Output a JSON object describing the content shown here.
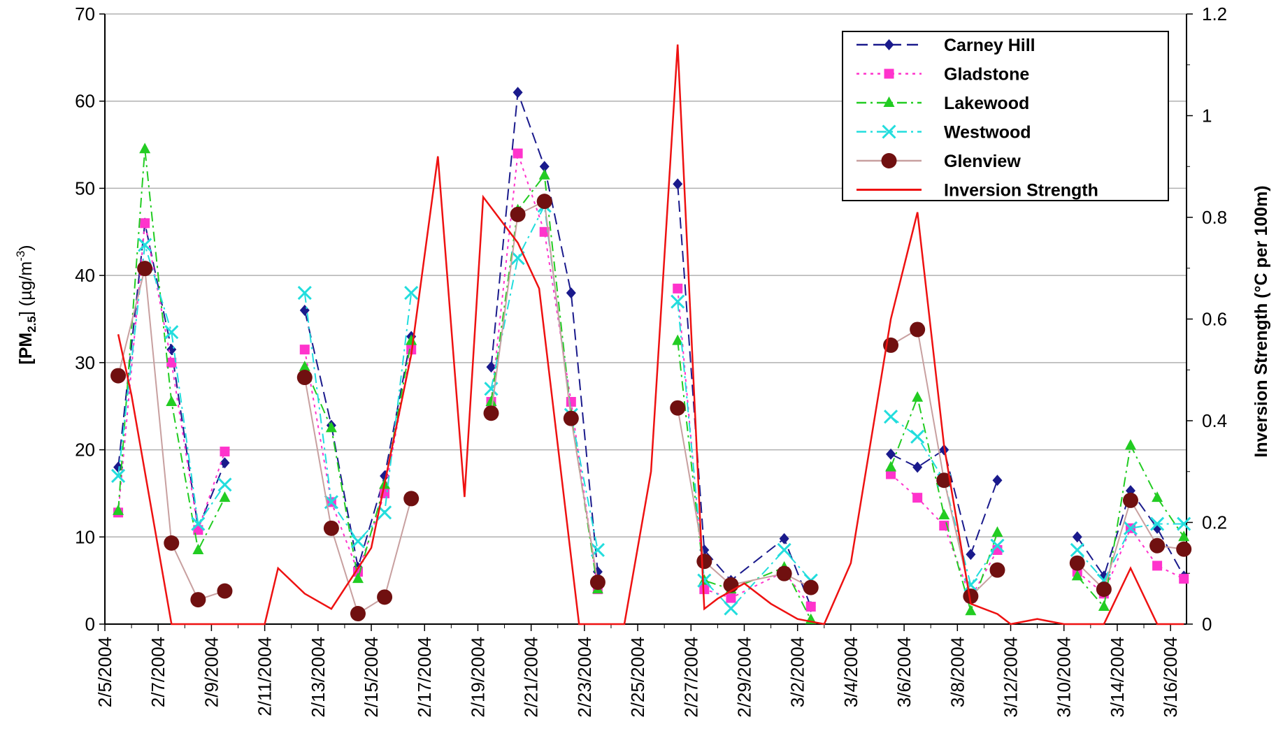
{
  "chart_data": {
    "type": "line",
    "ylabel": "[PM2.5] (µg/m3)",
    "ylabel_parts": {
      "pre": "[PM",
      "sub": "2.5",
      "mid": "] (µg/m",
      "sup": "-3",
      "post": ")"
    },
    "y2label": "Inversion Strength (°C per 100m)",
    "ylim": [
      0,
      70
    ],
    "y2lim": [
      0,
      1.2
    ],
    "yticks": [
      "0",
      "10",
      "20",
      "30",
      "40",
      "50",
      "60",
      "70"
    ],
    "y2ticks": [
      "0",
      "0.2",
      "0.4",
      "0.6",
      "0.8",
      "1",
      "1.2"
    ],
    "xlim": [
      0,
      40
    ],
    "x_tick_labels": [
      "2/5/2004",
      "2/7/2004",
      "2/9/2004",
      "2/11/2004",
      "2/13/2004",
      "2/15/2004",
      "2/17/2004",
      "2/19/2004",
      "2/21/2004",
      "2/23/2004",
      "2/25/2004",
      "2/27/2004",
      "2/29/2004",
      "3/2/2004",
      "3/4/2004",
      "3/6/2004",
      "3/8/2004",
      "3/12/2004",
      "3/10/2004",
      "3/14/2004",
      "3/16/2004"
    ],
    "grid": "horizontal",
    "legend_position": "top-right",
    "series": [
      {
        "name": "Carney Hill",
        "color": "#1a1a8c",
        "marker": "diamond",
        "dash": "dashed",
        "points": [
          [
            0.5,
            18
          ],
          [
            1.5,
            46
          ],
          [
            2.5,
            31.5
          ],
          [
            3.5,
            11
          ],
          [
            4.5,
            18.5
          ],
          [
            null,
            null
          ],
          [
            7.5,
            36
          ],
          [
            8.5,
            22.8
          ],
          [
            9.5,
            6.5
          ],
          [
            10.5,
            17
          ],
          [
            11.5,
            33
          ],
          [
            null,
            null
          ],
          [
            14.5,
            29.5
          ],
          [
            15.5,
            61
          ],
          [
            16.5,
            52.5
          ],
          [
            17.5,
            38
          ],
          [
            18.5,
            6
          ],
          [
            null,
            null
          ],
          [
            21.5,
            50.5
          ],
          [
            22.5,
            8.5
          ],
          [
            23.5,
            5
          ],
          [
            25.5,
            9.8
          ],
          [
            26.5,
            2
          ],
          [
            null,
            null
          ],
          [
            29.5,
            19.5
          ],
          [
            30.5,
            18
          ],
          [
            31.5,
            20
          ],
          [
            32.5,
            8
          ],
          [
            33.5,
            16.5
          ],
          [
            null,
            null
          ],
          [
            36.5,
            10
          ],
          [
            37.5,
            5.5
          ],
          [
            38.5,
            15.3
          ],
          [
            39.5,
            11
          ],
          [
            40.5,
            5.5
          ]
        ]
      },
      {
        "name": "Gladstone",
        "color": "#ff33cc",
        "marker": "square",
        "dash": "dotted",
        "points": [
          [
            0.5,
            12.8
          ],
          [
            1.5,
            46
          ],
          [
            2.5,
            30
          ],
          [
            3.5,
            10.8
          ],
          [
            4.5,
            19.8
          ],
          [
            null,
            null
          ],
          [
            7.5,
            31.5
          ],
          [
            8.5,
            14
          ],
          [
            9.5,
            6
          ],
          [
            10.5,
            15
          ],
          [
            11.5,
            31.5
          ],
          [
            null,
            null
          ],
          [
            14.5,
            25.5
          ],
          [
            15.5,
            54
          ],
          [
            16.5,
            45
          ],
          [
            17.5,
            25.5
          ],
          [
            18.5,
            4
          ],
          [
            null,
            null
          ],
          [
            21.5,
            38.5
          ],
          [
            22.5,
            4
          ],
          [
            23.5,
            3
          ],
          [
            25.5,
            6
          ],
          [
            26.5,
            2
          ],
          [
            null,
            null
          ],
          [
            29.5,
            17.2
          ],
          [
            30.5,
            14.5
          ],
          [
            31.5,
            11.3
          ],
          [
            32.5,
            3
          ],
          [
            33.5,
            8.5
          ],
          [
            null,
            null
          ],
          [
            36.5,
            6
          ],
          [
            37.5,
            3.5
          ],
          [
            38.5,
            11
          ],
          [
            39.5,
            6.7
          ],
          [
            40.5,
            5.2
          ]
        ]
      },
      {
        "name": "Lakewood",
        "color": "#22cc22",
        "marker": "triangle",
        "dash": "dashdot",
        "points": [
          [
            0.5,
            13
          ],
          [
            1.5,
            54.5
          ],
          [
            2.5,
            25.5
          ],
          [
            3.5,
            8.5
          ],
          [
            4.5,
            14.5
          ],
          [
            null,
            null
          ],
          [
            7.5,
            29.5
          ],
          [
            8.5,
            22.5
          ],
          [
            9.5,
            5.2
          ],
          [
            10.5,
            16
          ],
          [
            11.5,
            32.5
          ],
          [
            null,
            null
          ],
          [
            14.5,
            25.5
          ],
          [
            15.5,
            47.5
          ],
          [
            16.5,
            51.5
          ],
          [
            17.5,
            24
          ],
          [
            18.5,
            4
          ],
          [
            null,
            null
          ],
          [
            21.5,
            32.5
          ],
          [
            22.5,
            5
          ],
          [
            23.5,
            4
          ],
          [
            25.5,
            6.5
          ],
          [
            26.5,
            0.5
          ],
          [
            null,
            null
          ],
          [
            29.5,
            18
          ],
          [
            30.5,
            26
          ],
          [
            31.5,
            12.5
          ],
          [
            32.5,
            1.5
          ],
          [
            33.5,
            10.5
          ],
          [
            null,
            null
          ],
          [
            36.5,
            5.5
          ],
          [
            37.5,
            2
          ],
          [
            38.5,
            20.5
          ],
          [
            39.5,
            14.5
          ],
          [
            40.5,
            10
          ]
        ]
      },
      {
        "name": "Westwood",
        "color": "#22dddd",
        "marker": "x",
        "dash": "dashdot",
        "points": [
          [
            0.5,
            17
          ],
          [
            1.5,
            43.5
          ],
          [
            2.5,
            33.5
          ],
          [
            3.5,
            11.5
          ],
          [
            4.5,
            16
          ],
          [
            null,
            null
          ],
          [
            7.5,
            38
          ],
          [
            8.5,
            14
          ],
          [
            9.5,
            9.5
          ],
          [
            10.5,
            12.8
          ],
          [
            11.5,
            38
          ],
          [
            null,
            null
          ],
          [
            14.5,
            27
          ],
          [
            15.5,
            42
          ],
          [
            16.5,
            48
          ],
          [
            17.5,
            24
          ],
          [
            18.5,
            8.5
          ],
          [
            null,
            null
          ],
          [
            21.5,
            37
          ],
          [
            22.5,
            5
          ],
          [
            23.5,
            1.8
          ],
          [
            25.5,
            8.5
          ],
          [
            26.5,
            5
          ],
          [
            null,
            null
          ],
          [
            29.5,
            23.8
          ],
          [
            30.5,
            21.5
          ],
          [
            31.5,
            16.5
          ],
          [
            32.5,
            4.5
          ],
          [
            33.5,
            9
          ],
          [
            null,
            null
          ],
          [
            36.5,
            8.5
          ],
          [
            37.5,
            5
          ],
          [
            38.5,
            11
          ],
          [
            39.5,
            11.5
          ],
          [
            40.5,
            11.5
          ]
        ]
      },
      {
        "name": "Glenview",
        "color": "#c8a0a0",
        "marker": "circle",
        "dash": "solid",
        "marker_color": "#701010",
        "points": [
          [
            0.5,
            28.5
          ],
          [
            1.5,
            40.8
          ],
          [
            2.5,
            9.3
          ],
          [
            3.5,
            2.8
          ],
          [
            4.5,
            3.8
          ],
          [
            null,
            null
          ],
          [
            7.5,
            28.3
          ],
          [
            8.5,
            11
          ],
          [
            9.5,
            1.2
          ],
          [
            10.5,
            3.1
          ],
          [
            11.5,
            14.4
          ],
          [
            null,
            null
          ],
          [
            14.5,
            24.2
          ],
          [
            15.5,
            47
          ],
          [
            16.5,
            48.5
          ],
          [
            17.5,
            23.6
          ],
          [
            18.5,
            4.8
          ],
          [
            null,
            null
          ],
          [
            21.5,
            24.8
          ],
          [
            22.5,
            7.2
          ],
          [
            23.5,
            4.5
          ],
          [
            25.5,
            5.8
          ],
          [
            26.5,
            4.2
          ],
          [
            null,
            null
          ],
          [
            29.5,
            32
          ],
          [
            30.5,
            33.8
          ],
          [
            31.5,
            16.5
          ],
          [
            32.5,
            3.2
          ],
          [
            33.5,
            6.2
          ],
          [
            null,
            null
          ],
          [
            36.5,
            7
          ],
          [
            37.5,
            4
          ],
          [
            38.5,
            14.2
          ],
          [
            39.5,
            9
          ],
          [
            40.5,
            8.6
          ]
        ]
      },
      {
        "name": "Inversion Strength",
        "color": "#ee1111",
        "marker": "none",
        "dash": "solid",
        "axis": "right",
        "points": [
          [
            0.5,
            0.57
          ],
          [
            1,
            0.45
          ],
          [
            2.5,
            0
          ],
          [
            6,
            0
          ],
          [
            6.5,
            0.11
          ],
          [
            7.5,
            0.06
          ],
          [
            8.5,
            0.03
          ],
          [
            10,
            0.15
          ],
          [
            11.5,
            0.53
          ],
          [
            12.5,
            0.92
          ],
          [
            13.5,
            0.25
          ],
          [
            14.2,
            0.84
          ],
          [
            15.5,
            0.75
          ],
          [
            16.3,
            0.66
          ],
          [
            17.8,
            0
          ],
          [
            19.5,
            0
          ],
          [
            20.5,
            0.3
          ],
          [
            21.5,
            1.14
          ],
          [
            22.5,
            0.03
          ],
          [
            23,
            0.05
          ],
          [
            24,
            0.08
          ],
          [
            25,
            0.04
          ],
          [
            26,
            0.01
          ],
          [
            27,
            0
          ],
          [
            28,
            0.12
          ],
          [
            29.5,
            0.6
          ],
          [
            30.5,
            0.81
          ],
          [
            31.5,
            0.35
          ],
          [
            32.5,
            0.04
          ],
          [
            33.5,
            0.02
          ],
          [
            34,
            0
          ],
          [
            35,
            0.01
          ],
          [
            35.5,
            0.005
          ],
          [
            36,
            0
          ],
          [
            37.5,
            0
          ],
          [
            38.5,
            0.11
          ],
          [
            39.5,
            0
          ],
          [
            40.5,
            0
          ]
        ]
      }
    ]
  }
}
